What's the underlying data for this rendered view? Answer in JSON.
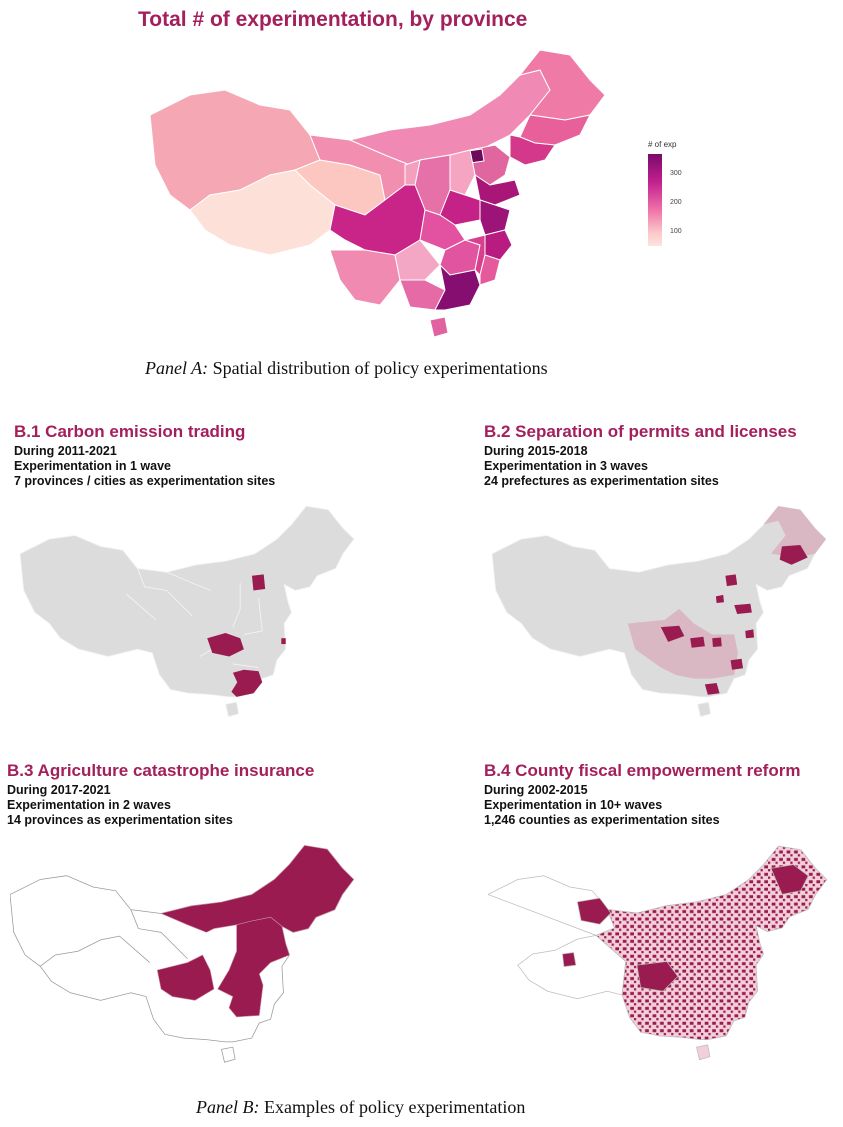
{
  "panel_a": {
    "title": "Total # of experimentation, by province",
    "legend_title": "# of exp",
    "legend_ticks": [
      "300",
      "200",
      "100"
    ],
    "caption_italic": "Panel A:",
    "caption_text": " Spatial distribution of policy experimentations"
  },
  "panel_b": {
    "caption_italic": "Panel B:",
    "caption_text": " Examples of policy experimentation",
    "maps": [
      {
        "id": "B.1",
        "title": "B.1 Carbon emission trading",
        "line1": "During 2011-2021",
        "line2": "Experimentation in 1 wave",
        "line3": "7 provinces / cities as experimentation sites"
      },
      {
        "id": "B.2",
        "title": "B.2 Separation of permits and licenses",
        "line1": "During 2015-2018",
        "line2": "Experimentation in 3 waves",
        "line3": "24 prefectures as experimentation sites"
      },
      {
        "id": "B.3",
        "title": "B.3 Agriculture catastrophe insurance",
        "line1": "During 2017-2021",
        "line2": "Experimentation in 2 waves",
        "line3": "14 provinces as experimentation sites"
      },
      {
        "id": "B.4",
        "title": "B.4 County fiscal empowerment reform",
        "line1": "During 2002-2015",
        "line2": "Experimentation in 10+ waves",
        "line3": "1,246 counties as experimentation sites"
      }
    ]
  },
  "colors": {
    "accent": "#a3205c",
    "highlight": "#9a1b4f",
    "gray_fill": "#dcdcdc",
    "light_pink": "#f2cfd9"
  }
}
